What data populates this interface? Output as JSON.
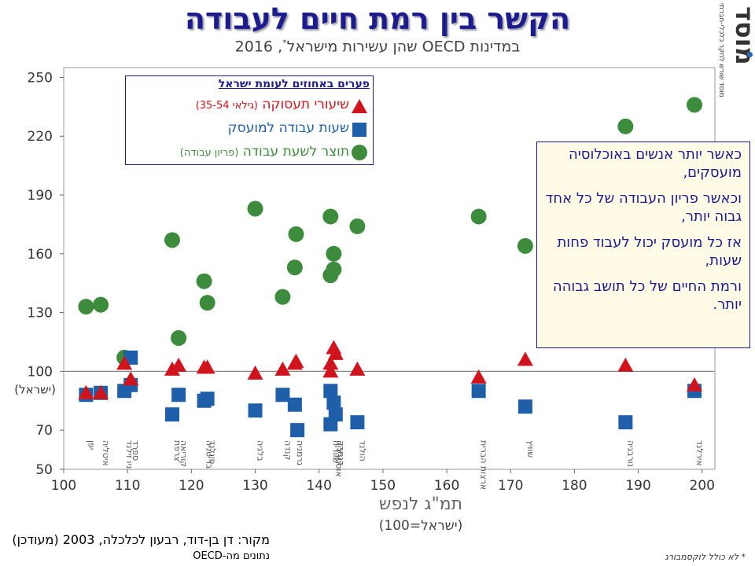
{
  "header": {
    "title": "הקשר בין רמת חיים לעבודה",
    "subtitle": "במדינות OECD שהן עשירות מישראל",
    "subtitle_mark": "*",
    "subtitle_year": ", 2016"
  },
  "logo": {
    "text": "מוסד",
    "tagline": "מוסד שורש לחקר כלכלי-חברתי"
  },
  "colors": {
    "red": "#d0141e",
    "blue": "#1f5faa",
    "green": "#3d8b3d",
    "navy": "#1c1c8f"
  },
  "legend": {
    "title": "פערים באחוזים לעומת ישראל",
    "items": [
      {
        "label": "שיעורי תעסוקה",
        "paren": "(גילאי 35-54)",
        "symbol": "triangle-icon"
      },
      {
        "label": "שעות עבודה למועסק",
        "paren": "",
        "symbol": "square-icon"
      },
      {
        "label": "תוצר לשעת עבודה",
        "paren": "(פריון עבודה)",
        "symbol": "circle-icon"
      }
    ]
  },
  "callout": [
    "כאשר יותר אנשים באוכלוסיה מועסקים,",
    "וכאשר פריון העבודה של כל אחד גבוה יותר,",
    "אז כל מועסק יכול לעבוד פחות שעות,",
    "ורמת החיים של כל תושב גבוהה יותר."
  ],
  "source": {
    "line1": "מקור:  דן בן-דוד, רבעון לכלכלה, 2003 (מעודכן)",
    "line2": "נתונים מה-OECD"
  },
  "footnote": "* לא כולל לוקסמבורג",
  "chart_data": {
    "type": "scatter",
    "xlabel": "תמ\"ג לנפש",
    "xlabel_sub": "(ישראל=100)",
    "ylabel": "",
    "israel_label": "(ישראל)",
    "xlim": [
      100,
      202
    ],
    "ylim": [
      50,
      255
    ],
    "xticks": [
      100,
      110,
      120,
      130,
      140,
      150,
      160,
      170,
      180,
      190,
      200
    ],
    "yticks": [
      50,
      70,
      100,
      130,
      160,
      190,
      220,
      250
    ],
    "reference_y": 100,
    "countries": [
      {
        "x": 103.5,
        "name": "יפן"
      },
      {
        "x": 105.8,
        "name": "איטליה"
      },
      {
        "x": 109.5,
        "name": "ניו זילנד"
      },
      {
        "x": 110.5,
        "name": "ספרד"
      },
      {
        "x": 117.0,
        "name": "צרפת"
      },
      {
        "x": 118.0,
        "name": "קוריאה"
      },
      {
        "x": 122.0,
        "name": "בריטניה"
      },
      {
        "x": 122.5,
        "name": "פינלנד"
      },
      {
        "x": 130.0,
        "name": "בלגיה"
      },
      {
        "x": 134.3,
        "name": "קנדה"
      },
      {
        "x": 136.2,
        "name": "גרמניה"
      },
      {
        "x": 141.8,
        "name": "שוודיה"
      },
      {
        "x": 142.3,
        "name": "אוסטרליה"
      },
      {
        "x": 142.6,
        "name": "דנמרק"
      },
      {
        "x": 146.0,
        "name": "הולנד"
      },
      {
        "x": 165.0,
        "name": "ארצות הברית"
      },
      {
        "x": 172.3,
        "name": "שוויץ"
      },
      {
        "x": 188.0,
        "name": "נורבגיה"
      },
      {
        "x": 198.8,
        "name": "אירלנד"
      }
    ],
    "series": [
      {
        "name": "שיעורי תעסוקה",
        "marker": "triangle",
        "points": [
          [
            103.5,
            89
          ],
          [
            105.8,
            89
          ],
          [
            109.5,
            104
          ],
          [
            110.5,
            96
          ],
          [
            117.0,
            101
          ],
          [
            118.0,
            103
          ],
          [
            122.0,
            102
          ],
          [
            122.5,
            102
          ],
          [
            130.0,
            99
          ],
          [
            134.3,
            101
          ],
          [
            136.2,
            104
          ],
          [
            136.4,
            105
          ],
          [
            141.8,
            104
          ],
          [
            141.8,
            100
          ],
          [
            142.3,
            112
          ],
          [
            142.6,
            109
          ],
          [
            146.0,
            101
          ],
          [
            165.0,
            97
          ],
          [
            172.3,
            106
          ],
          [
            188.0,
            103
          ],
          [
            198.8,
            93
          ]
        ]
      },
      {
        "name": "שעות עבודה למועסק",
        "marker": "square",
        "points": [
          [
            103.5,
            88
          ],
          [
            105.8,
            89
          ],
          [
            109.5,
            90
          ],
          [
            110.5,
            107
          ],
          [
            110.5,
            93
          ],
          [
            117.0,
            78
          ],
          [
            118.0,
            88
          ],
          [
            122.0,
            85
          ],
          [
            122.5,
            86
          ],
          [
            130.0,
            80
          ],
          [
            134.3,
            88
          ],
          [
            136.2,
            83
          ],
          [
            136.6,
            70
          ],
          [
            141.8,
            90
          ],
          [
            141.8,
            73
          ],
          [
            142.3,
            84
          ],
          [
            142.6,
            78
          ],
          [
            146.0,
            74
          ],
          [
            165.0,
            90
          ],
          [
            172.3,
            82
          ],
          [
            188.0,
            74
          ],
          [
            198.8,
            90
          ]
        ]
      },
      {
        "name": "תוצר לשעת עבודה",
        "marker": "circle",
        "points": [
          [
            103.5,
            133
          ],
          [
            105.8,
            134
          ],
          [
            109.5,
            107
          ],
          [
            117.0,
            167
          ],
          [
            118.0,
            117
          ],
          [
            122.0,
            146
          ],
          [
            122.5,
            135
          ],
          [
            130.0,
            183
          ],
          [
            134.3,
            138
          ],
          [
            136.2,
            153
          ],
          [
            136.4,
            170
          ],
          [
            141.8,
            179
          ],
          [
            142.3,
            160
          ],
          [
            142.3,
            152
          ],
          [
            141.8,
            149
          ],
          [
            146.0,
            174
          ],
          [
            165.0,
            179
          ],
          [
            172.3,
            164
          ],
          [
            188.0,
            225
          ],
          [
            198.8,
            236
          ]
        ]
      }
    ]
  }
}
